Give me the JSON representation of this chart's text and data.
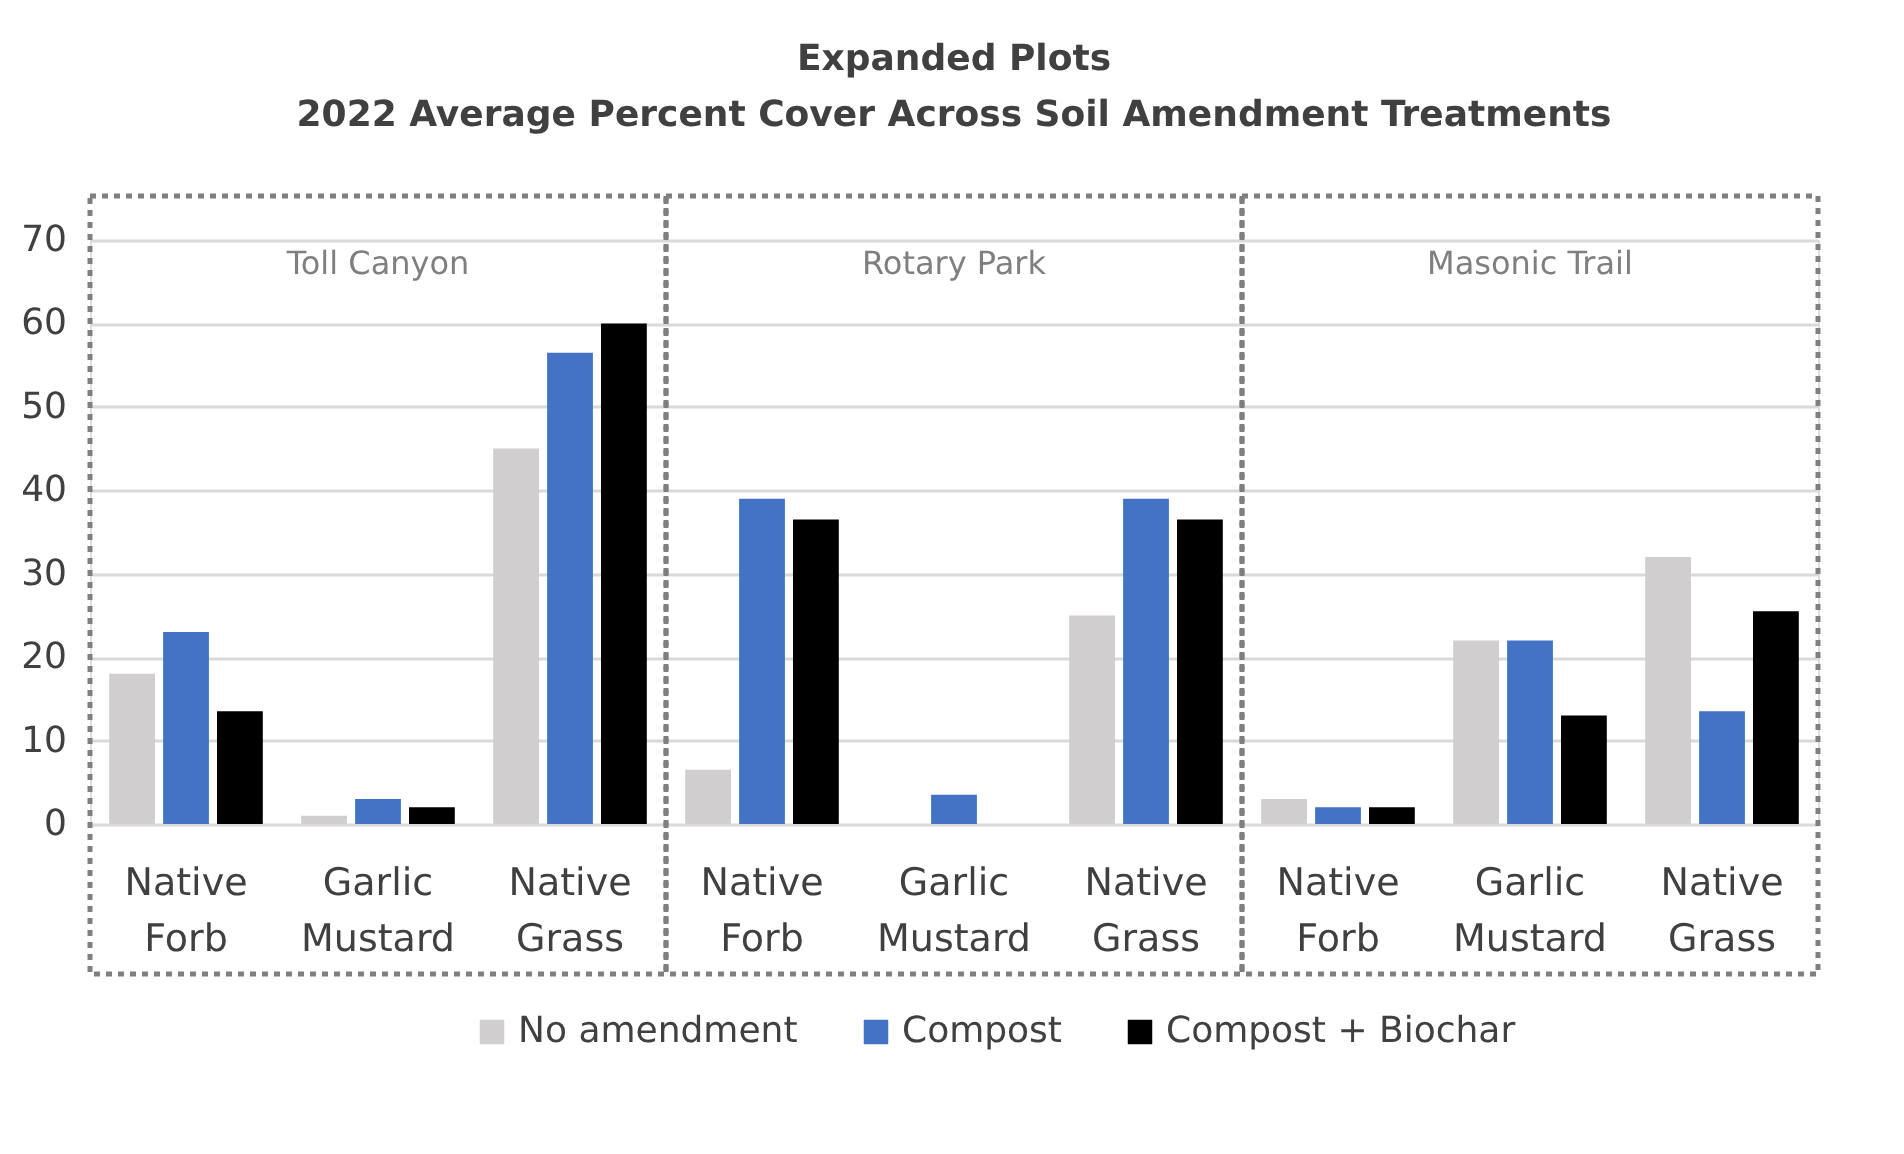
{
  "chart_data": {
    "type": "bar",
    "title": "Expanded Plots",
    "subtitle": "2022 Average Percent Cover Across Soil Amendment Treatments",
    "categories": [
      "Native Forb",
      "Garlic Mustard",
      "Native Grass",
      "Native Forb",
      "Garlic Mustard",
      "Native Grass",
      "Native Forb",
      "Garlic Mustard",
      "Native Grass"
    ],
    "series": [
      {
        "name": "No amendment",
        "color": "#d0cece",
        "values": [
          18,
          1,
          45,
          6.5,
          0,
          25,
          3,
          22,
          32
        ]
      },
      {
        "name": "Compost",
        "color": "#4472c4",
        "values": [
          23,
          3,
          56.5,
          39,
          3.5,
          39,
          2,
          22,
          13.5
        ]
      },
      {
        "name": "Compost + Biochar",
        "color": "#000000",
        "values": [
          13.5,
          2,
          60,
          36.5,
          0,
          36.5,
          2,
          13,
          25.5
        ]
      }
    ],
    "annotations": [
      "Toll Canyon",
      "Rotary Park",
      "Masonic Trail"
    ],
    "ylim": [
      0,
      70
    ],
    "yticks": [
      0,
      10,
      20,
      30,
      40,
      50,
      60,
      70
    ],
    "grid": "y",
    "legend": "bottom"
  }
}
